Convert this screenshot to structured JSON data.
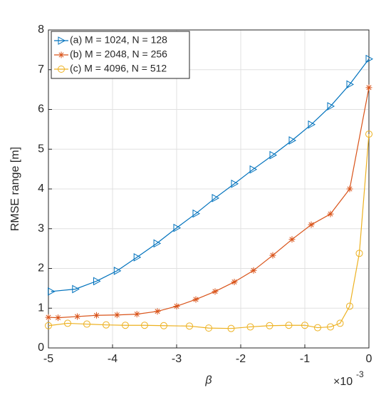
{
  "chart_data": {
    "type": "line",
    "xlabel": "β",
    "ylabel": "RMSE range [m]",
    "x_multiplier": "×10",
    "x_exponent": "-3",
    "xlim": [
      -5,
      0
    ],
    "xticks": [
      -5,
      -4,
      -3,
      -2,
      -1,
      0
    ],
    "ylim": [
      0,
      8
    ],
    "yticks": [
      0,
      1,
      2,
      3,
      4,
      5,
      6,
      7,
      8
    ],
    "grid": true,
    "legend": "upper left",
    "series": [
      {
        "name": "(a) M = 1024, N = 128",
        "color": "#0072bd",
        "marker": "triangle-right",
        "x": [
          -4.96,
          -4.58,
          -4.25,
          -3.93,
          -3.62,
          -3.31,
          -3.0,
          -2.7,
          -2.4,
          -2.1,
          -1.81,
          -1.5,
          -1.2,
          -0.9,
          -0.6,
          -0.3,
          0
        ],
        "values": [
          1.42,
          1.48,
          1.68,
          1.94,
          2.28,
          2.63,
          3.02,
          3.38,
          3.77,
          4.13,
          4.49,
          4.85,
          5.22,
          5.62,
          6.08,
          6.63,
          7.27
        ]
      },
      {
        "name": "(b) M = 2048, N = 256",
        "color": "#d95319",
        "marker": "asterisk",
        "x": [
          -5,
          -4.85,
          -4.55,
          -4.25,
          -3.93,
          -3.62,
          -3.3,
          -3.0,
          -2.7,
          -2.4,
          -2.1,
          -1.8,
          -1.5,
          -1.2,
          -0.9,
          -0.6,
          -0.3,
          0
        ],
        "values": [
          0.77,
          0.76,
          0.79,
          0.82,
          0.83,
          0.85,
          0.92,
          1.05,
          1.22,
          1.42,
          1.66,
          1.95,
          2.33,
          2.73,
          3.1,
          3.37,
          4.0,
          6.55
        ]
      },
      {
        "name": "(c) M = 4096, N = 512",
        "color": "#edb120",
        "marker": "circle",
        "x": [
          -5,
          -4.7,
          -4.4,
          -4.1,
          -3.8,
          -3.5,
          -3.2,
          -2.8,
          -2.5,
          -2.15,
          -1.85,
          -1.55,
          -1.25,
          -1.0,
          -0.8,
          -0.6,
          -0.45,
          -0.3,
          -0.15,
          0
        ],
        "values": [
          0.56,
          0.62,
          0.6,
          0.58,
          0.57,
          0.57,
          0.56,
          0.55,
          0.5,
          0.49,
          0.53,
          0.56,
          0.57,
          0.57,
          0.51,
          0.53,
          0.62,
          1.05,
          2.38,
          5.38
        ]
      }
    ]
  }
}
